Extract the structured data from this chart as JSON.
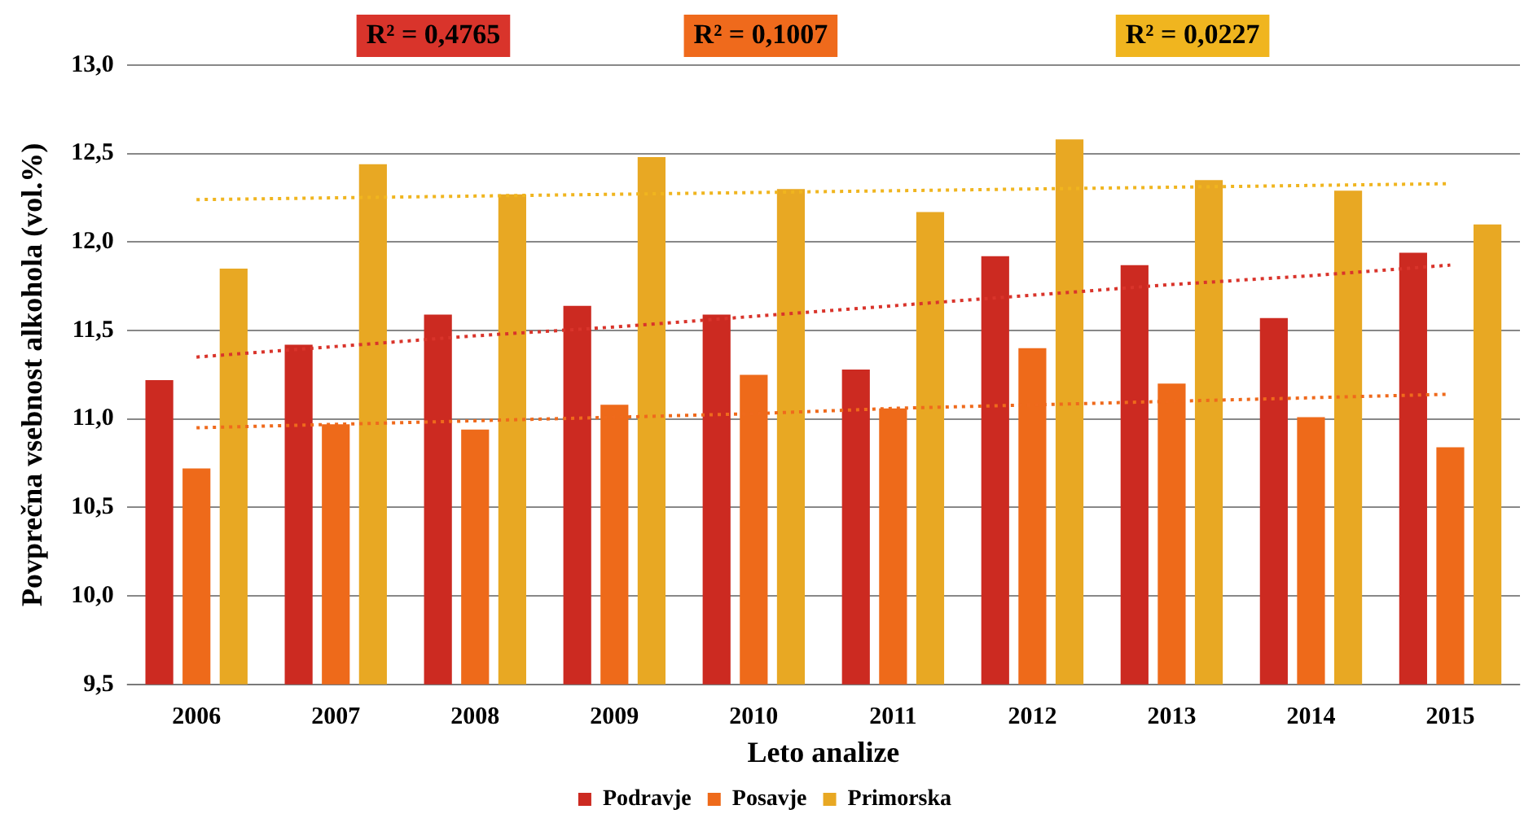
{
  "chart_data": {
    "type": "bar",
    "xlabel": "Leto analize",
    "ylabel": "Povprečna vsebnost alkohola (vol.%)",
    "categories": [
      "2006",
      "2007",
      "2008",
      "2009",
      "2010",
      "2011",
      "2012",
      "2013",
      "2014",
      "2015"
    ],
    "series": [
      {
        "name": "Podravje",
        "color": "#cc2a21",
        "values": [
          11.22,
          11.42,
          11.59,
          11.64,
          11.59,
          11.28,
          11.92,
          11.87,
          11.57,
          11.94
        ]
      },
      {
        "name": "Posavje",
        "color": "#ee6a1a",
        "values": [
          10.72,
          10.97,
          10.94,
          11.08,
          11.25,
          11.06,
          11.4,
          11.2,
          11.01,
          10.84
        ]
      },
      {
        "name": "Primorska",
        "color": "#e8a823",
        "values": [
          11.85,
          12.44,
          12.27,
          12.48,
          12.3,
          12.17,
          12.58,
          12.35,
          12.29,
          12.1
        ]
      },
      {
        "type": "line",
        "color": "#d9342b",
        "values": [
          11.35,
          11.41,
          11.47,
          11.52,
          11.58,
          11.64,
          11.7,
          11.76,
          11.81,
          11.87
        ],
        "line_style": "dotted",
        "marker": "none"
      },
      {
        "type": "line",
        "color": "#ef6a1c",
        "values": [
          10.95,
          10.97,
          10.99,
          11.01,
          11.03,
          11.06,
          11.08,
          11.1,
          11.12,
          11.14
        ],
        "line_style": "dotted",
        "marker": "none"
      },
      {
        "type": "line",
        "color": "#f0b51f",
        "values": [
          12.24,
          12.25,
          12.26,
          12.27,
          12.28,
          12.29,
          12.3,
          12.31,
          12.32,
          12.33
        ],
        "line_style": "dotted",
        "marker": "none"
      }
    ],
    "annotations": [
      "R² = 0,4765",
      "R² = 0,1007",
      "R² = 0,0227"
    ],
    "ylim": [
      9.5,
      13.0
    ],
    "yticks": [
      {
        "value": 9.5,
        "label": "9,5"
      },
      {
        "value": 10.0,
        "label": "10,0"
      },
      {
        "value": 10.5,
        "label": "10,5"
      },
      {
        "value": 11.0,
        "label": "11,0"
      },
      {
        "value": 11.5,
        "label": "11,5"
      },
      {
        "value": 12.0,
        "label": "12,0"
      },
      {
        "value": 12.5,
        "label": "12,5"
      },
      {
        "value": 13.0,
        "label": "13,0"
      }
    ],
    "grid": "y",
    "legend": "bottom"
  }
}
